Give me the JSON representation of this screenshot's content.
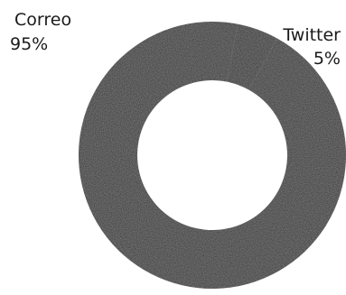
{
  "chart_data": {
    "type": "pie",
    "variant": "donut",
    "categories": [
      "Correo",
      "Twitter"
    ],
    "values": [
      95,
      5
    ],
    "value_labels": [
      "95%",
      "5%"
    ],
    "unit": "%",
    "legend": "none",
    "colors": {
      "fill": "#2b2b2b",
      "background": "#ffffff",
      "text": "#1a1a1a"
    }
  }
}
